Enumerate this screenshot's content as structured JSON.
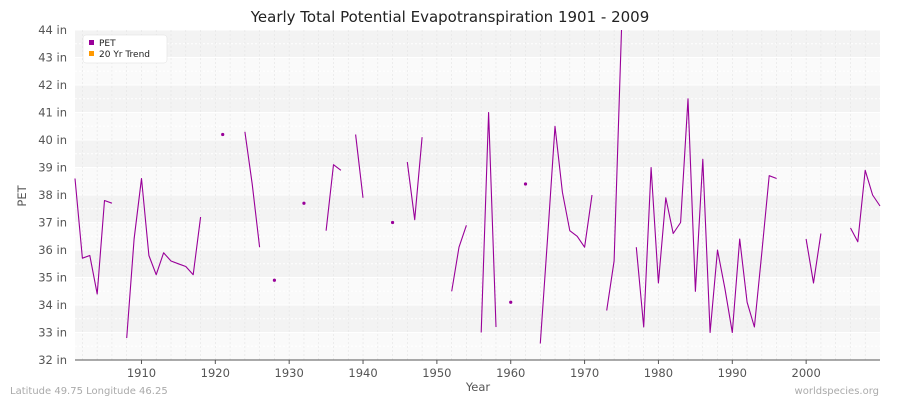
{
  "chart_data": {
    "type": "line",
    "title": "Yearly Total Potential Evapotranspiration 1901 - 2009",
    "xlabel": "Year",
    "ylabel": "PET",
    "xlim": [
      1901,
      2009
    ],
    "ylim": [
      32,
      44
    ],
    "x_ticks": [
      1910,
      1920,
      1930,
      1940,
      1950,
      1960,
      1970,
      1980,
      1990,
      2000
    ],
    "y_ticks": [
      32,
      33,
      34,
      35,
      36,
      37,
      38,
      39,
      40,
      41,
      42,
      43,
      44
    ],
    "y_tick_labels": [
      "32 in",
      "33 in",
      "34 in",
      "35 in",
      "36 in",
      "37 in",
      "38 in",
      "39 in",
      "40 in",
      "41 in",
      "42 in",
      "43 in",
      "44 in"
    ],
    "grid": true,
    "legend_position": "top-left",
    "colors": {
      "pet": "#990099",
      "trend": "#FF9900",
      "band": "#f3f3f3",
      "plot_bg": "#fafafa"
    },
    "series": [
      {
        "name": "PET",
        "points": [
          [
            1901,
            38.6
          ],
          [
            1902,
            35.7
          ],
          [
            1903,
            35.8
          ],
          [
            1904,
            34.4
          ],
          [
            1905,
            37.8
          ],
          [
            1906,
            37.7
          ],
          [
            1907,
            null
          ],
          [
            1908,
            32.8
          ],
          [
            1909,
            36.4
          ],
          [
            1910,
            38.6
          ],
          [
            1911,
            35.8
          ],
          [
            1912,
            35.1
          ],
          [
            1913,
            35.9
          ],
          [
            1914,
            35.6
          ],
          [
            1915,
            35.5
          ],
          [
            1916,
            35.4
          ],
          [
            1917,
            35.1
          ],
          [
            1918,
            37.2
          ],
          [
            1919,
            null
          ],
          [
            1920,
            null
          ],
          [
            1921,
            40.2
          ],
          [
            1922,
            null
          ],
          [
            1923,
            null
          ],
          [
            1924,
            40.3
          ],
          [
            1925,
            38.4
          ],
          [
            1926,
            36.1
          ],
          [
            1927,
            null
          ],
          [
            1928,
            34.9
          ],
          [
            1929,
            null
          ],
          [
            1930,
            null
          ],
          [
            1931,
            null
          ],
          [
            1932,
            37.7
          ],
          [
            1933,
            null
          ],
          [
            1934,
            null
          ],
          [
            1935,
            36.7
          ],
          [
            1936,
            39.1
          ],
          [
            1937,
            38.9
          ],
          [
            1938,
            null
          ],
          [
            1939,
            40.2
          ],
          [
            1940,
            37.9
          ],
          [
            1941,
            null
          ],
          [
            1942,
            null
          ],
          [
            1943,
            null
          ],
          [
            1944,
            37.0
          ],
          [
            1945,
            null
          ],
          [
            1946,
            39.2
          ],
          [
            1947,
            37.1
          ],
          [
            1948,
            40.1
          ],
          [
            1949,
            null
          ],
          [
            1950,
            null
          ],
          [
            1951,
            null
          ],
          [
            1952,
            34.5
          ],
          [
            1953,
            36.1
          ],
          [
            1954,
            36.9
          ],
          [
            1955,
            null
          ],
          [
            1956,
            33.0
          ],
          [
            1957,
            41.0
          ],
          [
            1958,
            33.2
          ],
          [
            1959,
            null
          ],
          [
            1960,
            34.1
          ],
          [
            1961,
            null
          ],
          [
            1962,
            38.4
          ],
          [
            1963,
            null
          ],
          [
            1964,
            32.6
          ],
          [
            1965,
            36.5
          ],
          [
            1966,
            40.5
          ],
          [
            1967,
            38.1
          ],
          [
            1968,
            36.7
          ],
          [
            1969,
            36.5
          ],
          [
            1970,
            36.1
          ],
          [
            1971,
            38.0
          ],
          [
            1972,
            null
          ],
          [
            1973,
            33.8
          ],
          [
            1974,
            35.6
          ],
          [
            1975,
            44.0
          ],
          [
            1976,
            null
          ],
          [
            1977,
            36.1
          ],
          [
            1978,
            33.2
          ],
          [
            1979,
            39.0
          ],
          [
            1980,
            34.8
          ],
          [
            1981,
            37.9
          ],
          [
            1982,
            36.6
          ],
          [
            1983,
            37.0
          ],
          [
            1984,
            41.5
          ],
          [
            1985,
            34.5
          ],
          [
            1986,
            39.3
          ],
          [
            1987,
            33.0
          ],
          [
            1988,
            36.0
          ],
          [
            1989,
            34.6
          ],
          [
            1990,
            33.0
          ],
          [
            1991,
            36.4
          ],
          [
            1992,
            34.1
          ],
          [
            1993,
            33.2
          ],
          [
            1994,
            35.9
          ],
          [
            1995,
            38.7
          ],
          [
            1996,
            38.6
          ],
          [
            1997,
            null
          ],
          [
            1998,
            null
          ],
          [
            1999,
            null
          ],
          [
            2000,
            36.4
          ],
          [
            2001,
            34.8
          ],
          [
            2002,
            36.6
          ],
          [
            2003,
            null
          ],
          [
            2004,
            null
          ],
          [
            2005,
            null
          ],
          [
            2006,
            36.8
          ],
          [
            2007,
            36.3
          ],
          [
            2008,
            38.9
          ],
          [
            2009,
            38.0
          ],
          [
            2010,
            37.6
          ]
        ]
      },
      {
        "name": "20 Yr Trend",
        "points": []
      }
    ]
  },
  "footer": {
    "location": "Latitude 49.75 Longitude 46.25",
    "source": "worldspecies.org"
  }
}
